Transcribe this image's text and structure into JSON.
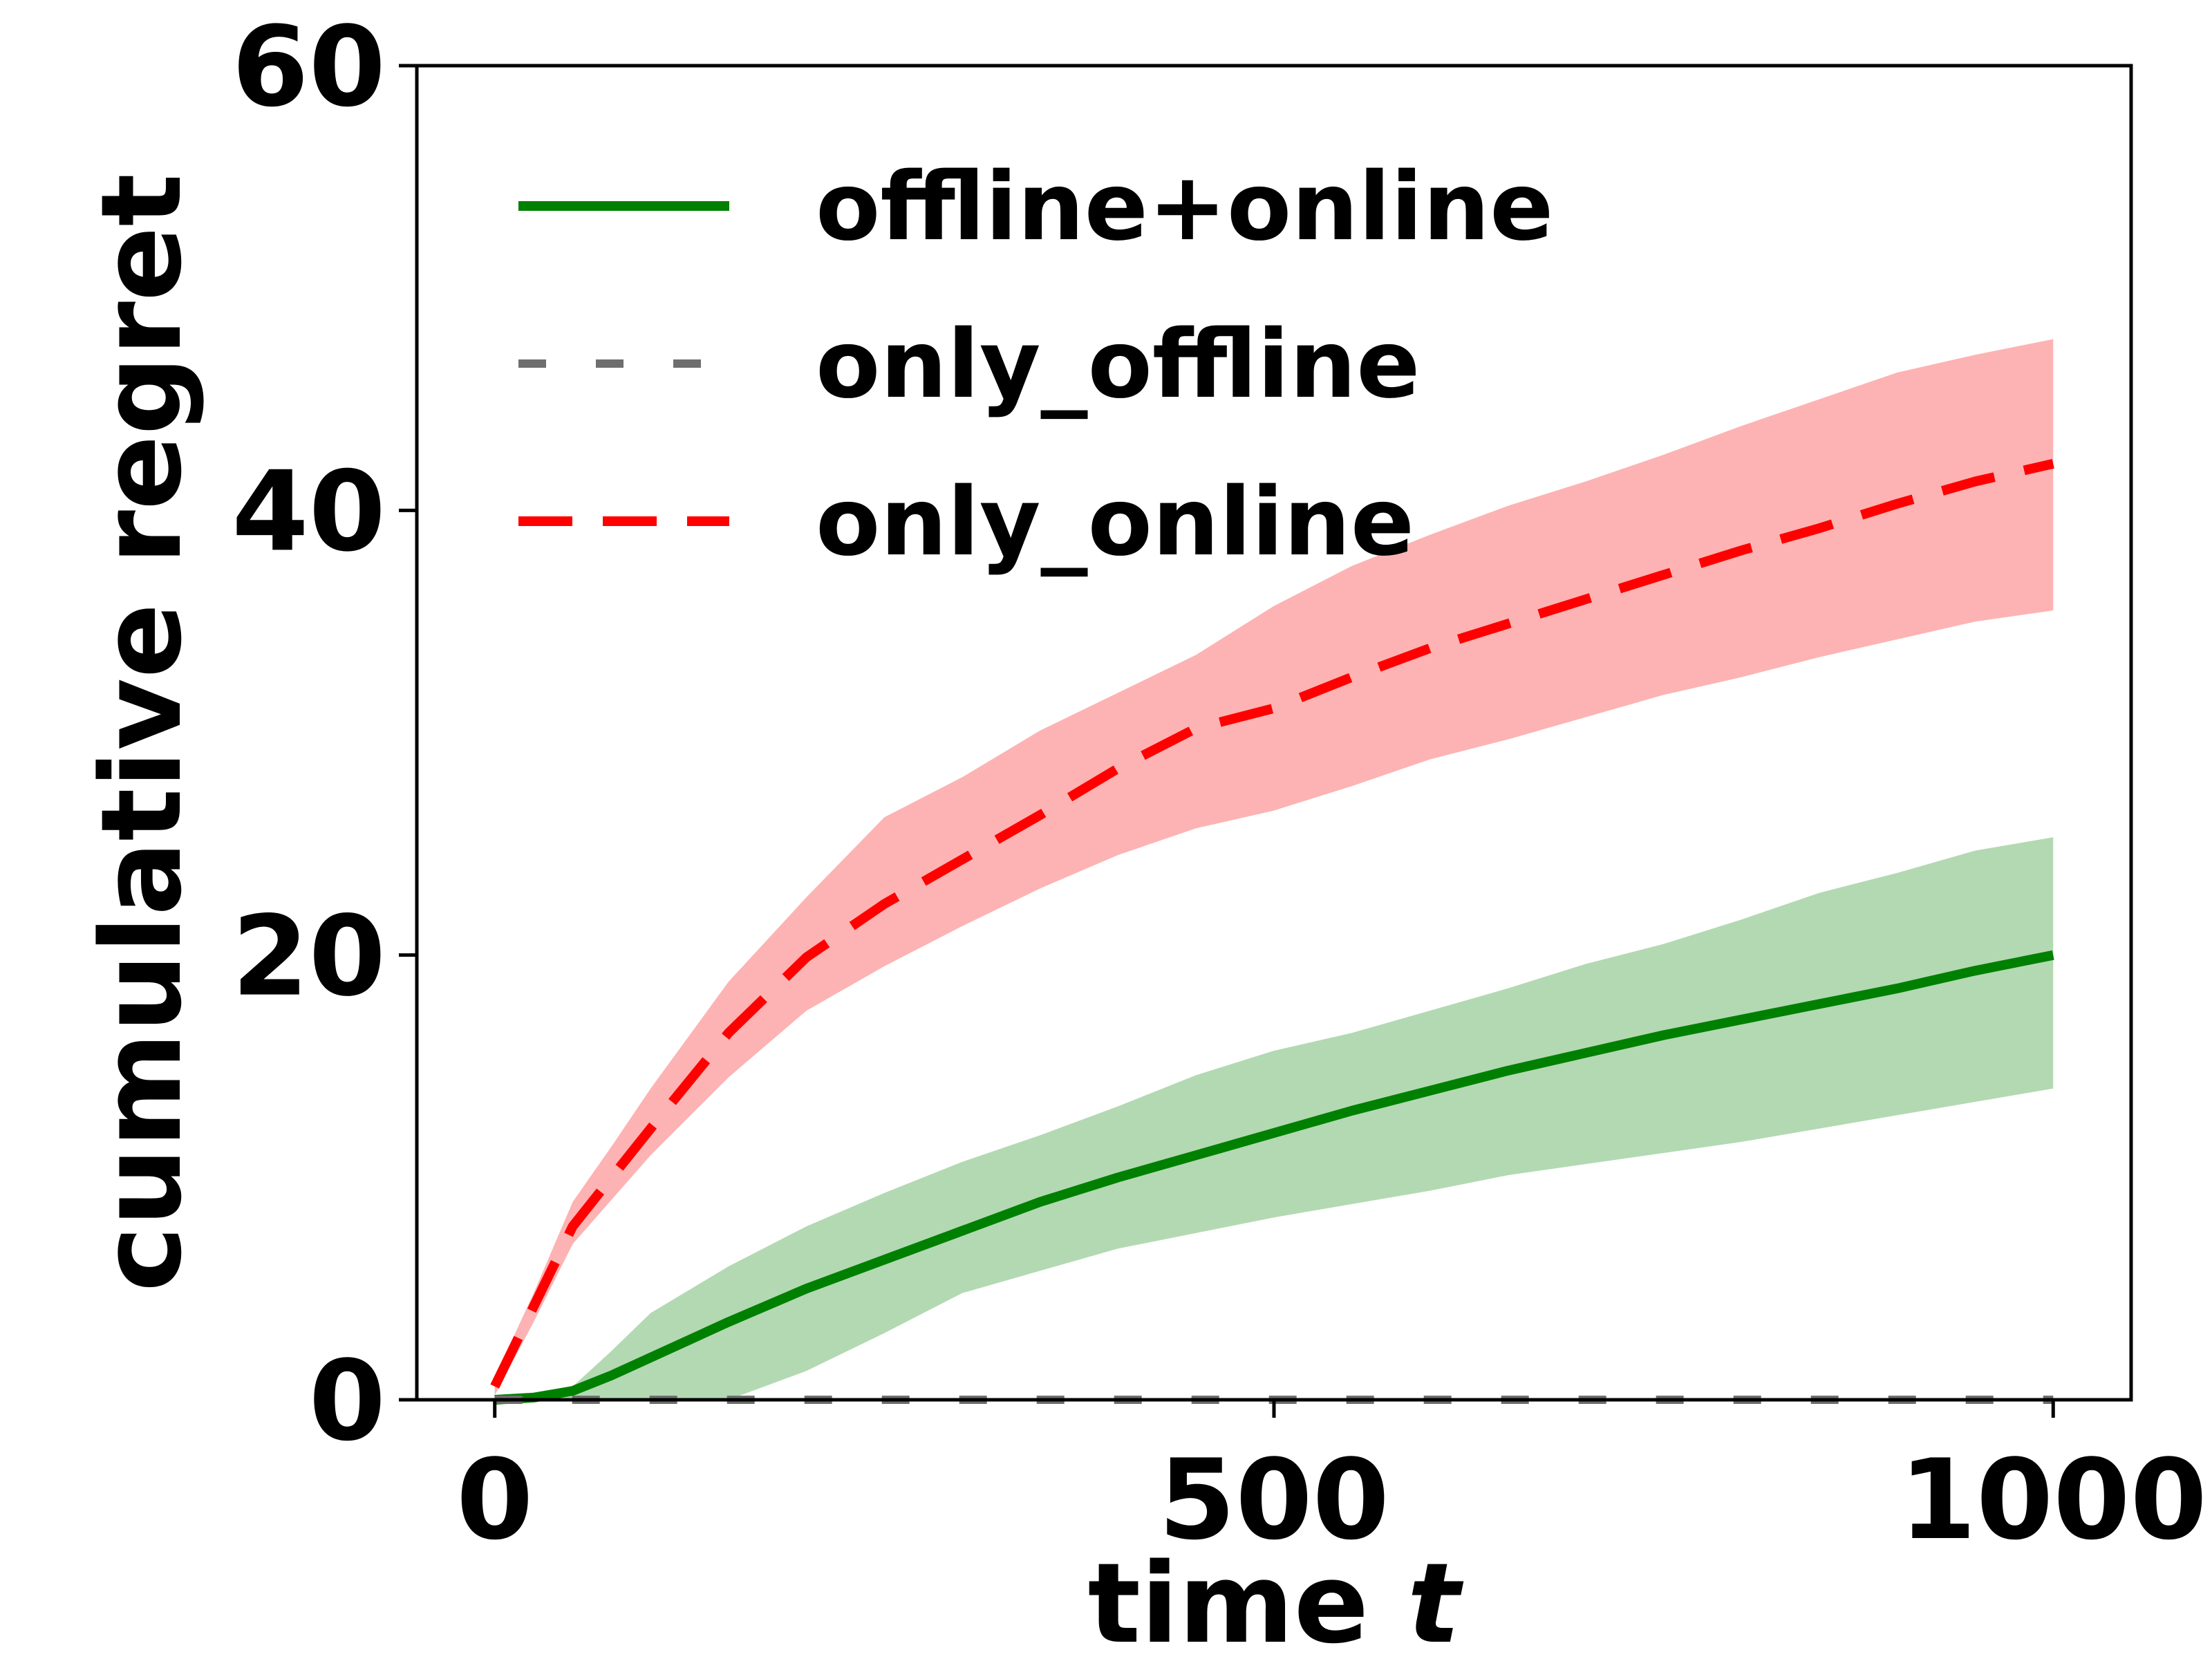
{
  "chart_data": {
    "type": "line",
    "title": "",
    "xlabel": "time",
    "xlabel_var": "t",
    "ylabel": "cumulative regret",
    "xlim": [
      -50,
      1050
    ],
    "ylim": [
      0,
      60
    ],
    "xticks": [
      0,
      500,
      1000
    ],
    "yticks": [
      0,
      20,
      40,
      60
    ],
    "grid": false,
    "legend_position": "top-left",
    "x": [
      0,
      25,
      50,
      75,
      100,
      150,
      200,
      250,
      300,
      350,
      400,
      450,
      500,
      550,
      600,
      650,
      700,
      750,
      800,
      850,
      900,
      950,
      1000
    ],
    "series": [
      {
        "name": "offline+online",
        "color": "#008000",
        "band_color": "#b3d9b3",
        "line_style": "solid",
        "mean": [
          0,
          0.1,
          0.4,
          1.1,
          1.9,
          3.5,
          5.0,
          6.3,
          7.6,
          8.9,
          10.0,
          11.0,
          12.0,
          13.0,
          13.9,
          14.8,
          15.6,
          16.4,
          17.1,
          17.8,
          18.5,
          19.3,
          20.0
        ],
        "lower": [
          0,
          0,
          0,
          0,
          0,
          0,
          1.3,
          3.0,
          4.8,
          5.8,
          6.8,
          7.5,
          8.2,
          8.8,
          9.4,
          10.1,
          10.6,
          11.1,
          11.6,
          12.2,
          12.8,
          13.4,
          14.0
        ],
        "upper": [
          0,
          0.2,
          0.6,
          2.2,
          3.9,
          6.0,
          7.8,
          9.3,
          10.7,
          11.9,
          13.2,
          14.6,
          15.7,
          16.5,
          17.5,
          18.5,
          19.6,
          20.5,
          21.6,
          22.8,
          23.7,
          24.7,
          25.3
        ]
      },
      {
        "name": "only_offline",
        "color": "#6e6e6e",
        "line_style": "dashed",
        "mean": [
          0,
          0,
          0,
          0,
          0,
          0,
          0,
          0,
          0,
          0,
          0,
          0,
          0,
          0,
          0,
          0,
          0,
          0,
          0,
          0,
          0,
          0,
          0
        ]
      },
      {
        "name": "only_online",
        "color": "#ff0000",
        "band_color": "#fdb3b3",
        "line_style": "dashed",
        "mean": [
          0.6,
          4.2,
          7.8,
          10.0,
          12.2,
          16.5,
          19.9,
          22.3,
          24.3,
          26.3,
          28.4,
          30.2,
          31.1,
          32.5,
          33.8,
          34.9,
          36.0,
          37.1,
          38.2,
          39.2,
          40.3,
          41.3,
          42.1
        ],
        "lower": [
          0.2,
          3.5,
          7.0,
          9.0,
          11.0,
          14.5,
          17.5,
          19.5,
          21.3,
          23.0,
          24.5,
          25.7,
          26.5,
          27.6,
          28.8,
          29.7,
          30.7,
          31.7,
          32.5,
          33.4,
          34.2,
          35.0,
          35.5
        ],
        "upper": [
          1.0,
          4.8,
          8.9,
          11.4,
          14.0,
          18.8,
          22.6,
          26.2,
          28.0,
          30.1,
          31.8,
          33.5,
          35.7,
          37.5,
          38.9,
          40.2,
          41.3,
          42.5,
          43.8,
          45.0,
          46.2,
          47.0,
          47.7
        ]
      }
    ]
  }
}
